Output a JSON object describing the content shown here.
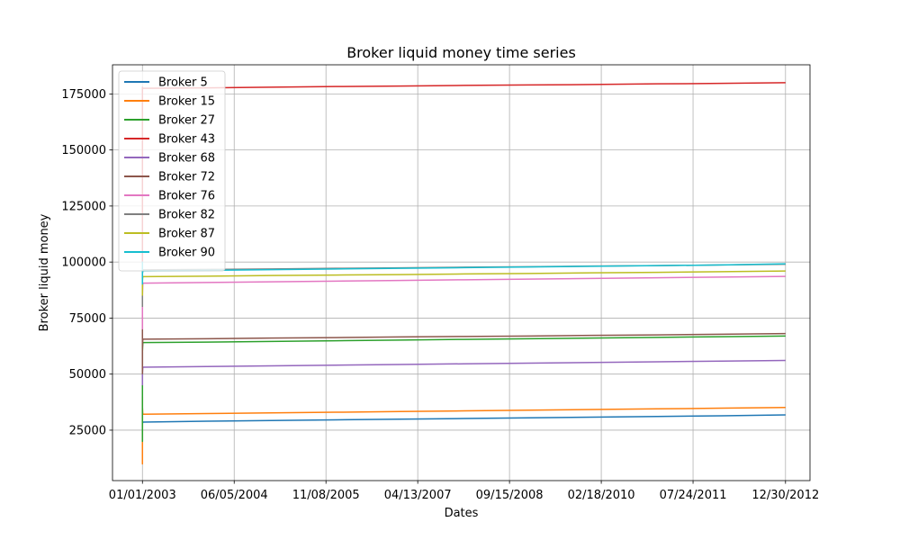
{
  "chart_data": {
    "type": "line",
    "title": "Broker liquid money time series",
    "xlabel": "Dates",
    "ylabel": "Broker liquid money",
    "grid": true,
    "legend_position": "top-left",
    "x_tick_labels": [
      "01/01/2003",
      "06/05/2004",
      "11/08/2005",
      "04/13/2007",
      "09/15/2008",
      "02/18/2010",
      "07/24/2011",
      "12/30/2012"
    ],
    "y_ticks": [
      25000,
      50000,
      75000,
      100000,
      125000,
      150000,
      175000
    ],
    "y_tick_labels": [
      "25000",
      "50000",
      "75000",
      "100000",
      "125000",
      "150000",
      "175000"
    ],
    "xlim": [
      "2002-07-15",
      "2013-05-18"
    ],
    "ylim": [
      2500,
      188000
    ],
    "x_dates": [
      "2003-01-01",
      "2003-01-03",
      "2004-01-01",
      "2005-01-01",
      "2006-01-01",
      "2007-01-01",
      "2008-01-01",
      "2009-01-01",
      "2010-01-01",
      "2011-01-01",
      "2012-01-01",
      "2012-12-30"
    ],
    "series": [
      {
        "name": "Broker 5",
        "color": "#1f77b4",
        "initial": [
          20000,
          35000,
          28000
        ],
        "values": [
          28500,
          28600,
          29000,
          29300,
          29600,
          29900,
          30200,
          30500,
          30800,
          31100,
          31400,
          31800
        ]
      },
      {
        "name": "Broker 15",
        "color": "#ff7f0e",
        "initial": [
          40000,
          10000,
          35000
        ],
        "values": [
          32000,
          32100,
          32400,
          32700,
          33000,
          33300,
          33600,
          33900,
          34200,
          34500,
          34800,
          35100
        ]
      },
      {
        "name": "Broker 27",
        "color": "#2ca02c",
        "initial": [
          30000,
          20000,
          60000
        ],
        "values": [
          64000,
          64100,
          64300,
          64600,
          64900,
          65200,
          65500,
          65800,
          66100,
          66400,
          66700,
          67000
        ]
      },
      {
        "name": "Broker 43",
        "color": "#d62728",
        "initial": [
          100000,
          170000,
          178000
        ],
        "values": [
          177500,
          177500,
          177700,
          178000,
          178300,
          178500,
          178800,
          179000,
          179200,
          179500,
          179700,
          180000
        ]
      },
      {
        "name": "Broker 68",
        "color": "#9467bd",
        "initial": [
          45000,
          60000,
          50000
        ],
        "values": [
          53000,
          53100,
          53400,
          53700,
          54000,
          54300,
          54600,
          54900,
          55200,
          55500,
          55800,
          56100
        ]
      },
      {
        "name": "Broker 72",
        "color": "#8c564b",
        "initial": [
          50000,
          76000,
          62000
        ],
        "values": [
          65500,
          65600,
          65800,
          66100,
          66300,
          66600,
          66800,
          67000,
          67300,
          67500,
          67800,
          68100
        ]
      },
      {
        "name": "Broker 76",
        "color": "#e377c2",
        "initial": [
          70000,
          88000,
          85000
        ],
        "values": [
          90500,
          90600,
          90900,
          91200,
          91500,
          91800,
          92100,
          92400,
          92700,
          93000,
          93300,
          93600
        ]
      },
      {
        "name": "Broker 82",
        "color": "#7f7f7f",
        "initial": [
          80000,
          97000,
          95000
        ],
        "values": [
          96500,
          96500,
          96700,
          96900,
          97200,
          97400,
          97700,
          97900,
          98200,
          98400,
          98700,
          99000
        ]
      },
      {
        "name": "Broker 87",
        "color": "#bcbd22",
        "initial": [
          85000,
          95000,
          92000
        ],
        "values": [
          93500,
          93500,
          93700,
          94000,
          94200,
          94400,
          94700,
          94900,
          95200,
          95400,
          95700,
          96000
        ]
      },
      {
        "name": "Broker 90",
        "color": "#17becf",
        "initial": [
          90000,
          100000,
          95000
        ],
        "values": [
          96000,
          96100,
          96300,
          96600,
          96900,
          97200,
          97500,
          97800,
          98100,
          98400,
          98700,
          99200
        ]
      }
    ]
  }
}
